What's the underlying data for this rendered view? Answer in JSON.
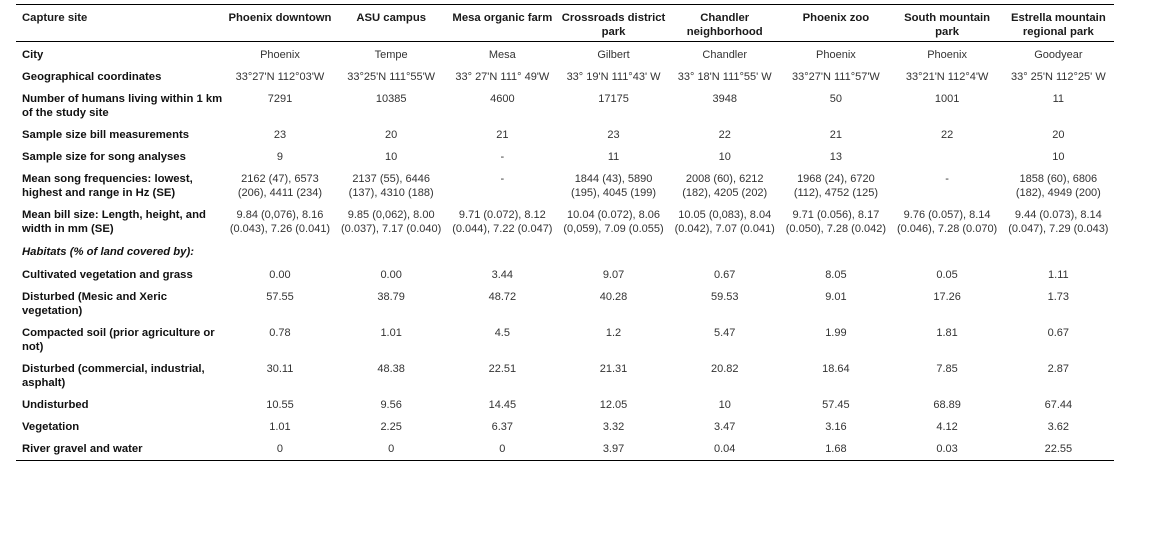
{
  "table": {
    "header": {
      "label": "Capture site",
      "sites": [
        "Phoenix downtown",
        "ASU campus",
        "Mesa organic farm",
        "Crossroads district park",
        "Chandler neighborhood",
        "Phoenix zoo",
        "South mountain park",
        "Estrella mountain regional park"
      ]
    },
    "rows": [
      {
        "label": "City",
        "values": [
          "Phoenix",
          "Tempe",
          "Mesa",
          "Gilbert",
          "Chandler",
          "Phoenix",
          "Phoenix",
          "Goodyear"
        ]
      },
      {
        "label": "Geographical coordinates",
        "values": [
          "33°27'N 112°03'W",
          "33°25'N 111°55'W",
          "33° 27'N 111° 49'W",
          "33° 19'N 111°43' W",
          "33° 18'N 111°55' W",
          "33°27'N 111°57'W",
          "33°21'N 112°4'W",
          "33° 25'N 112°25' W"
        ]
      },
      {
        "label": "Number of humans living within 1 km of the study site",
        "values": [
          "7291",
          "10385",
          "4600",
          "17175",
          "3948",
          "50",
          "1001",
          "11"
        ]
      },
      {
        "label": "Sample size bill measurements",
        "values": [
          "23",
          "20",
          "21",
          "23",
          "22",
          "21",
          "22",
          "20"
        ]
      },
      {
        "label": "Sample size for song analyses",
        "values": [
          "9",
          "10",
          "-",
          "11",
          "10",
          "13",
          "",
          "10"
        ]
      },
      {
        "label": "Mean song frequencies: lowest, highest and range in Hz (SE)",
        "values": [
          "2162 (47), 6573 (206), 4411 (234)",
          "2137 (55), 6446 (137), 4310 (188)",
          "-",
          "1844 (43), 5890 (195), 4045 (199)",
          "2008 (60), 6212 (182), 4205 (202)",
          "1968 (24), 6720 (112), 4752 (125)",
          "-",
          "1858 (60), 6806 (182), 4949 (200)"
        ]
      },
      {
        "label": "Mean bill size: Length, height, and width in mm (SE)",
        "values": [
          "9.84 (0,076), 8.16 (0.043), 7.26 (0.041)",
          "9.85 (0,062), 8.00 (0.037), 7.17 (0.040)",
          "9.71 (0.072), 8.12 (0.044), 7.22 (0.047)",
          "10.04 (0.072), 8.06 (0,059), 7.09 (0.055)",
          "10.05 (0,083), 8.04 (0.042), 7.07 (0.041)",
          "9.71 (0.056), 8.17 (0.050), 7.28 (0.042)",
          "9.76 (0.057), 8.14 (0.046), 7.28 (0.070)",
          "9.44 (0.073), 8.14 (0.047), 7.29 (0.043)"
        ]
      },
      {
        "label": "Habitats (% of land covered by):",
        "section": true,
        "values": [
          "",
          "",
          "",
          "",
          "",
          "",
          "",
          ""
        ]
      },
      {
        "label": "Cultivated vegetation and grass",
        "values": [
          "0.00",
          "0.00",
          "3.44",
          "9.07",
          "0.67",
          "8.05",
          "0.05",
          "1.11"
        ]
      },
      {
        "label": "Disturbed (Mesic and Xeric vegetation)",
        "values": [
          "57.55",
          "38.79",
          "48.72",
          "40.28",
          "59.53",
          "9.01",
          "17.26",
          "1.73"
        ]
      },
      {
        "label": "Compacted soil (prior agriculture or not)",
        "values": [
          "0.78",
          "1.01",
          "4.5",
          "1.2",
          "5.47",
          "1.99",
          "1.81",
          "0.67"
        ]
      },
      {
        "label": "Disturbed (commercial, industrial, asphalt)",
        "values": [
          "30.11",
          "48.38",
          "22.51",
          "21.31",
          "20.82",
          "18.64",
          "7.85",
          "2.87"
        ]
      },
      {
        "label": "Undisturbed",
        "values": [
          "10.55",
          "9.56",
          "14.45",
          "12.05",
          "10",
          "57.45",
          "68.89",
          "67.44"
        ]
      },
      {
        "label": "Vegetation",
        "values": [
          "1.01",
          "2.25",
          "6.37",
          "3.32",
          "3.47",
          "3.16",
          "4.12",
          "3.62"
        ]
      },
      {
        "label": "River gravel and water",
        "values": [
          "0",
          "0",
          "0",
          "3.97",
          "0.04",
          "1.68",
          "0.03",
          "22.55"
        ]
      }
    ]
  }
}
